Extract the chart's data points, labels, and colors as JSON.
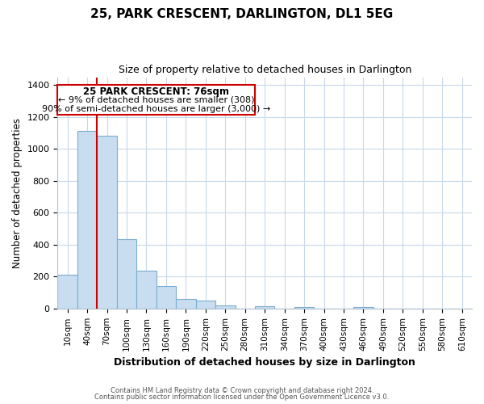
{
  "title": "25, PARK CRESCENT, DARLINGTON, DL1 5EG",
  "subtitle": "Size of property relative to detached houses in Darlington",
  "xlabel": "Distribution of detached houses by size in Darlington",
  "ylabel": "Number of detached properties",
  "bar_color": "#c8ddf0",
  "bar_edge_color": "#7aadd0",
  "bin_labels": [
    "10sqm",
    "40sqm",
    "70sqm",
    "100sqm",
    "130sqm",
    "160sqm",
    "190sqm",
    "220sqm",
    "250sqm",
    "280sqm",
    "310sqm",
    "340sqm",
    "370sqm",
    "400sqm",
    "430sqm",
    "460sqm",
    "490sqm",
    "520sqm",
    "550sqm",
    "580sqm",
    "610sqm"
  ],
  "bar_values": [
    210,
    1115,
    1085,
    435,
    240,
    140,
    60,
    48,
    22,
    0,
    15,
    0,
    10,
    0,
    0,
    8,
    0,
    0,
    0,
    0,
    0
  ],
  "ylim": [
    0,
    1450
  ],
  "yticks": [
    0,
    200,
    400,
    600,
    800,
    1000,
    1200,
    1400
  ],
  "vline_x_index": 2,
  "vline_color": "#cc0000",
  "annotation_title": "25 PARK CRESCENT: 76sqm",
  "annotation_line1": "← 9% of detached houses are smaller (308)",
  "annotation_line2": "90% of semi-detached houses are larger (3,000) →",
  "footer_line1": "Contains HM Land Registry data © Crown copyright and database right 2024.",
  "footer_line2": "Contains public sector information licensed under the Open Government Licence v3.0.",
  "background_color": "#ffffff",
  "grid_color": "#c8d8e8"
}
